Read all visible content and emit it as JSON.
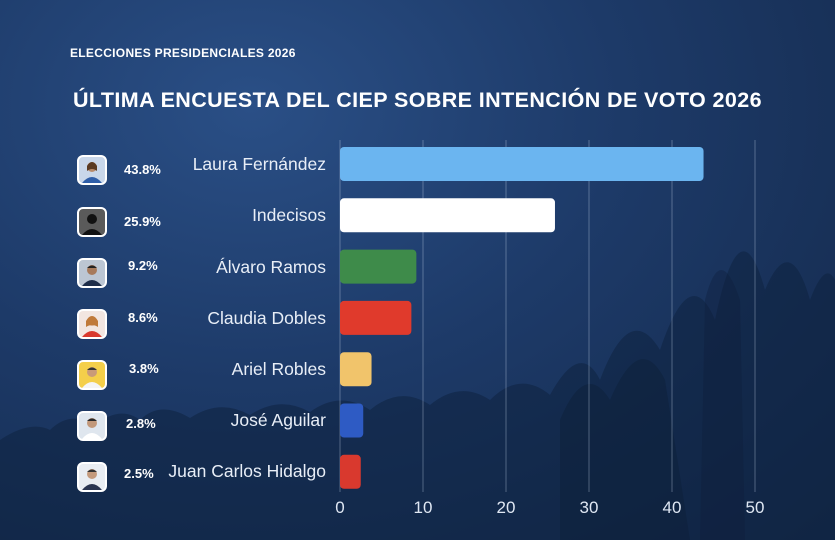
{
  "header": {
    "supertitle": "ELECCIONES PRESIDENCIALES 2026",
    "title": "ÚLTIMA ENCUESTA DEL CIEP SOBRE INTENCIÓN DE VOTO 2026"
  },
  "chart_data": {
    "type": "bar",
    "orientation": "horizontal",
    "title": "ÚLTIMA ENCUESTA DEL CIEP SOBRE INTENCIÓN DE VOTO 2026",
    "xlabel": "",
    "ylabel": "",
    "xlim": [
      0,
      50
    ],
    "xticks": [
      0,
      10,
      20,
      30,
      40,
      50
    ],
    "grid": true,
    "categories": [
      "Laura Fernández",
      "Indecisos",
      "Álvaro Ramos",
      "Claudia Dobles",
      "Ariel Robles",
      "José Aguilar",
      "Juan Carlos Hidalgo"
    ],
    "values": [
      43.8,
      25.9,
      9.2,
      8.6,
      3.8,
      2.8,
      2.5
    ],
    "value_labels": [
      "43.8%",
      "25.9%",
      "9.2%",
      "8.6%",
      "3.8%",
      "2.8%",
      "2.5%"
    ],
    "colors": [
      "#6bb5f0",
      "#ffffff",
      "#3e8b4a",
      "#e03a2c",
      "#f1c46b",
      "#2e5bc4",
      "#d9392e"
    ]
  }
}
